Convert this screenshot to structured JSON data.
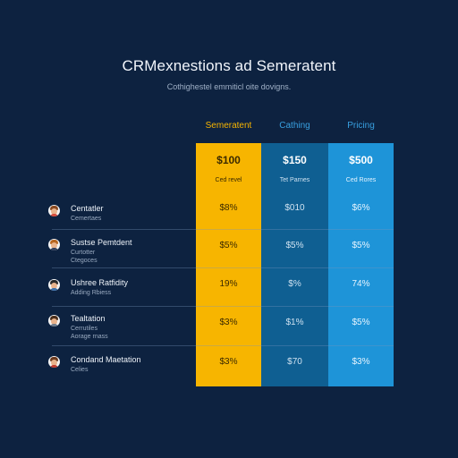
{
  "header": {
    "title": "CRMexnestions ad Semeratent",
    "subtitle": "Cothighestel emmiticl oite dovigns."
  },
  "plans": [
    {
      "name": "Semeratent",
      "price": "$100",
      "price_note": "Ced revel",
      "color": "#f7b500",
      "header_color": "#f7b500"
    },
    {
      "name": "Cathing",
      "price": "$150",
      "price_note": "Tet Parnes",
      "color": "#0f5f92",
      "header_color": "#38a0e0"
    },
    {
      "name": "Pricing",
      "price": "$500",
      "price_note": "Ced Rores",
      "color": "#1e94d8",
      "header_color": "#38a0e0"
    }
  ],
  "rows": [
    {
      "name": "Centatler",
      "desc": [
        "Cemertaes"
      ],
      "values": [
        "$8%",
        "$010",
        "$6%"
      ],
      "avatar": {
        "hair": "#8a4a20",
        "shirt": "#d64a3a"
      }
    },
    {
      "name": "Sustse Pemtdent",
      "desc": [
        "Curtotter",
        "Ctegoces"
      ],
      "values": [
        "$5%",
        "$5%",
        "$5%"
      ],
      "avatar": {
        "hair": "#b7651f",
        "shirt": "#2f3d5a"
      }
    },
    {
      "name": "Ushree Ratfidity",
      "desc": [
        "Adding Rbiess"
      ],
      "values": [
        "19%",
        "$%",
        "74%"
      ],
      "avatar": {
        "hair": "#2a2a2a",
        "shirt": "#3a6ea8"
      }
    },
    {
      "name": "Tealtation",
      "desc": [
        "Cerrutiles",
        "Aorage rnass"
      ],
      "values": [
        "$3%",
        "$1%",
        "$5%"
      ],
      "avatar": {
        "hair": "#4a2e1a",
        "shirt": "#6b7a8c"
      }
    },
    {
      "name": "Condand Maetation",
      "desc": [
        "Celies"
      ],
      "values": [
        "$3%",
        "$70",
        "$3%"
      ],
      "avatar": {
        "hair": "#6b3a1e",
        "shirt": "#c0392b"
      }
    }
  ]
}
